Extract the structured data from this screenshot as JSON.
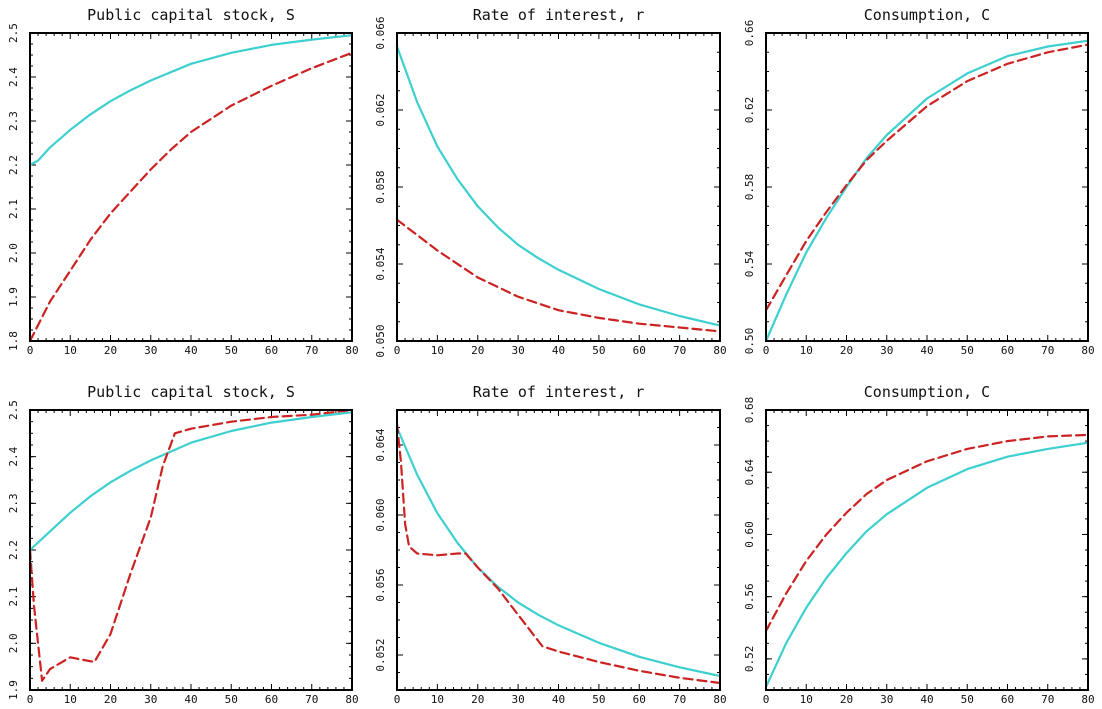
{
  "colors": {
    "series_1": "#3ecfcf",
    "series_2": "#cc2222",
    "frame": "#000000",
    "background": "#ffffff"
  },
  "chart_data": [
    {
      "type": "line",
      "title": "Public capital stock, S",
      "xlim": [
        0,
        80
      ],
      "ylim": [
        1.8,
        2.5
      ],
      "xticks": [
        0,
        10,
        20,
        30,
        40,
        50,
        60,
        70,
        80
      ],
      "yticks": [
        1.8,
        1.9,
        2.0,
        2.1,
        2.2,
        2.3,
        2.4,
        2.5
      ],
      "ytick_labels": [
        "1.8",
        "1.9",
        "2.0",
        "2.1",
        "2.2",
        "2.3",
        "2.4",
        "2.5"
      ],
      "series": [
        {
          "style": "solid",
          "color": "#3ecfcf",
          "x": [
            0,
            2,
            5,
            10,
            15,
            20,
            25,
            30,
            40,
            50,
            60,
            70,
            80
          ],
          "y": [
            2.2,
            2.21,
            2.24,
            2.28,
            2.315,
            2.345,
            2.37,
            2.392,
            2.43,
            2.455,
            2.473,
            2.485,
            2.495
          ]
        },
        {
          "style": "dashed",
          "color": "#cc2222",
          "x": [
            0,
            5,
            10,
            15,
            20,
            25,
            30,
            35,
            40,
            50,
            60,
            70,
            80
          ],
          "y": [
            1.8,
            1.89,
            1.96,
            2.03,
            2.09,
            2.14,
            2.19,
            2.235,
            2.275,
            2.335,
            2.38,
            2.42,
            2.455
          ]
        }
      ]
    },
    {
      "type": "line",
      "title": "Rate of interest, r",
      "xlim": [
        0,
        80
      ],
      "ylim": [
        0.05,
        0.066
      ],
      "xticks": [
        0,
        10,
        20,
        30,
        40,
        50,
        60,
        70,
        80
      ],
      "yticks": [
        0.05,
        0.054,
        0.058,
        0.062,
        0.066
      ],
      "ytick_labels": [
        "0.050",
        "0.054",
        "0.058",
        "0.062",
        "0.066"
      ],
      "series": [
        {
          "style": "solid",
          "color": "#3ecfcf",
          "x": [
            0,
            5,
            10,
            15,
            20,
            25,
            30,
            35,
            40,
            50,
            60,
            70,
            80
          ],
          "y": [
            0.0653,
            0.0624,
            0.0601,
            0.0584,
            0.057,
            0.0559,
            0.055,
            0.0543,
            0.0537,
            0.0527,
            0.0519,
            0.0513,
            0.0508
          ]
        },
        {
          "style": "dashed",
          "color": "#cc2222",
          "x": [
            0,
            10,
            20,
            30,
            40,
            50,
            60,
            70,
            80
          ],
          "y": [
            0.0563,
            0.0547,
            0.0533,
            0.0523,
            0.0516,
            0.0512,
            0.0509,
            0.0507,
            0.0505
          ]
        }
      ]
    },
    {
      "type": "line",
      "title": "Consumption, C",
      "xlim": [
        0,
        80
      ],
      "ylim": [
        0.5,
        0.66
      ],
      "xticks": [
        0,
        10,
        20,
        30,
        40,
        50,
        60,
        70,
        80
      ],
      "yticks": [
        0.5,
        0.54,
        0.58,
        0.62,
        0.66
      ],
      "ytick_labels": [
        "0.50",
        "0.54",
        "0.58",
        "0.62",
        "0.66"
      ],
      "series": [
        {
          "style": "solid",
          "color": "#3ecfcf",
          "x": [
            0,
            5,
            10,
            15,
            20,
            25,
            30,
            40,
            50,
            60,
            70,
            80
          ],
          "y": [
            0.5,
            0.524,
            0.546,
            0.564,
            0.58,
            0.595,
            0.607,
            0.626,
            0.639,
            0.648,
            0.653,
            0.656
          ]
        },
        {
          "style": "dashed",
          "color": "#cc2222",
          "x": [
            0,
            5,
            10,
            15,
            20,
            25,
            30,
            40,
            50,
            60,
            70,
            80
          ],
          "y": [
            0.516,
            0.534,
            0.552,
            0.567,
            0.581,
            0.594,
            0.604,
            0.622,
            0.635,
            0.644,
            0.65,
            0.654
          ]
        }
      ]
    },
    {
      "type": "line",
      "title": "Public capital stock, S",
      "xlim": [
        0,
        80
      ],
      "ylim": [
        1.9,
        2.5
      ],
      "xticks": [
        0,
        10,
        20,
        30,
        40,
        50,
        60,
        70,
        80
      ],
      "yticks": [
        1.9,
        2.0,
        2.1,
        2.2,
        2.3,
        2.4,
        2.5
      ],
      "ytick_labels": [
        "1.9",
        "2.0",
        "2.1",
        "2.2",
        "2.3",
        "2.4",
        "2.5"
      ],
      "series": [
        {
          "style": "solid",
          "color": "#3ecfcf",
          "x": [
            0,
            5,
            10,
            15,
            20,
            25,
            30,
            40,
            50,
            60,
            70,
            80
          ],
          "y": [
            2.2,
            2.24,
            2.28,
            2.315,
            2.345,
            2.37,
            2.392,
            2.43,
            2.455,
            2.473,
            2.485,
            2.495
          ]
        },
        {
          "style": "dashed",
          "color": "#cc2222",
          "x": [
            0,
            1,
            3,
            5,
            10,
            13,
            16,
            20,
            25,
            30,
            33,
            36,
            40,
            50,
            60,
            70,
            80
          ],
          "y": [
            2.2,
            2.08,
            1.92,
            1.945,
            1.97,
            1.965,
            1.96,
            2.02,
            2.15,
            2.27,
            2.38,
            2.45,
            2.46,
            2.475,
            2.485,
            2.49,
            2.5
          ]
        }
      ]
    },
    {
      "type": "line",
      "title": "Rate of interest, r",
      "xlim": [
        0,
        80
      ],
      "ylim": [
        0.05,
        0.066
      ],
      "xticks": [
        0,
        10,
        20,
        30,
        40,
        50,
        60,
        70,
        80
      ],
      "yticks": [
        0.052,
        0.056,
        0.06,
        0.064
      ],
      "ytick_labels": [
        "0.052",
        "0.056",
        "0.060",
        "0.064"
      ],
      "series": [
        {
          "style": "solid",
          "color": "#3ecfcf",
          "x": [
            0,
            5,
            10,
            15,
            20,
            25,
            30,
            35,
            40,
            50,
            60,
            70,
            80
          ],
          "y": [
            0.065,
            0.0623,
            0.0601,
            0.0584,
            0.057,
            0.0559,
            0.055,
            0.0543,
            0.0537,
            0.0527,
            0.0519,
            0.0513,
            0.0508
          ]
        },
        {
          "style": "dashed",
          "color": "#cc2222",
          "x": [
            0,
            1,
            2,
            3,
            5,
            10,
            15,
            17,
            20,
            25,
            30,
            36,
            40,
            50,
            60,
            70,
            80
          ],
          "y": [
            0.0652,
            0.063,
            0.0595,
            0.0582,
            0.0578,
            0.0577,
            0.0578,
            0.0578,
            0.057,
            0.0558,
            0.0543,
            0.0525,
            0.0522,
            0.0516,
            0.0511,
            0.0507,
            0.0504
          ]
        }
      ]
    },
    {
      "type": "line",
      "title": "Consumption, C",
      "xlim": [
        0,
        80
      ],
      "ylim": [
        0.5,
        0.68
      ],
      "xticks": [
        0,
        10,
        20,
        30,
        40,
        50,
        60,
        70,
        80
      ],
      "yticks": [
        0.52,
        0.56,
        0.6,
        0.64,
        0.68
      ],
      "ytick_labels": [
        "0.52",
        "0.56",
        "0.60",
        "0.64",
        "0.68"
      ],
      "series": [
        {
          "style": "solid",
          "color": "#3ecfcf",
          "x": [
            0,
            5,
            10,
            15,
            20,
            25,
            30,
            40,
            50,
            60,
            70,
            80
          ],
          "y": [
            0.502,
            0.53,
            0.553,
            0.572,
            0.588,
            0.602,
            0.613,
            0.63,
            0.642,
            0.65,
            0.655,
            0.659
          ]
        },
        {
          "style": "dashed",
          "color": "#cc2222",
          "x": [
            0,
            5,
            10,
            15,
            20,
            25,
            30,
            40,
            50,
            60,
            70,
            80
          ],
          "y": [
            0.538,
            0.562,
            0.583,
            0.6,
            0.614,
            0.626,
            0.635,
            0.647,
            0.655,
            0.66,
            0.663,
            0.664
          ]
        }
      ]
    }
  ]
}
